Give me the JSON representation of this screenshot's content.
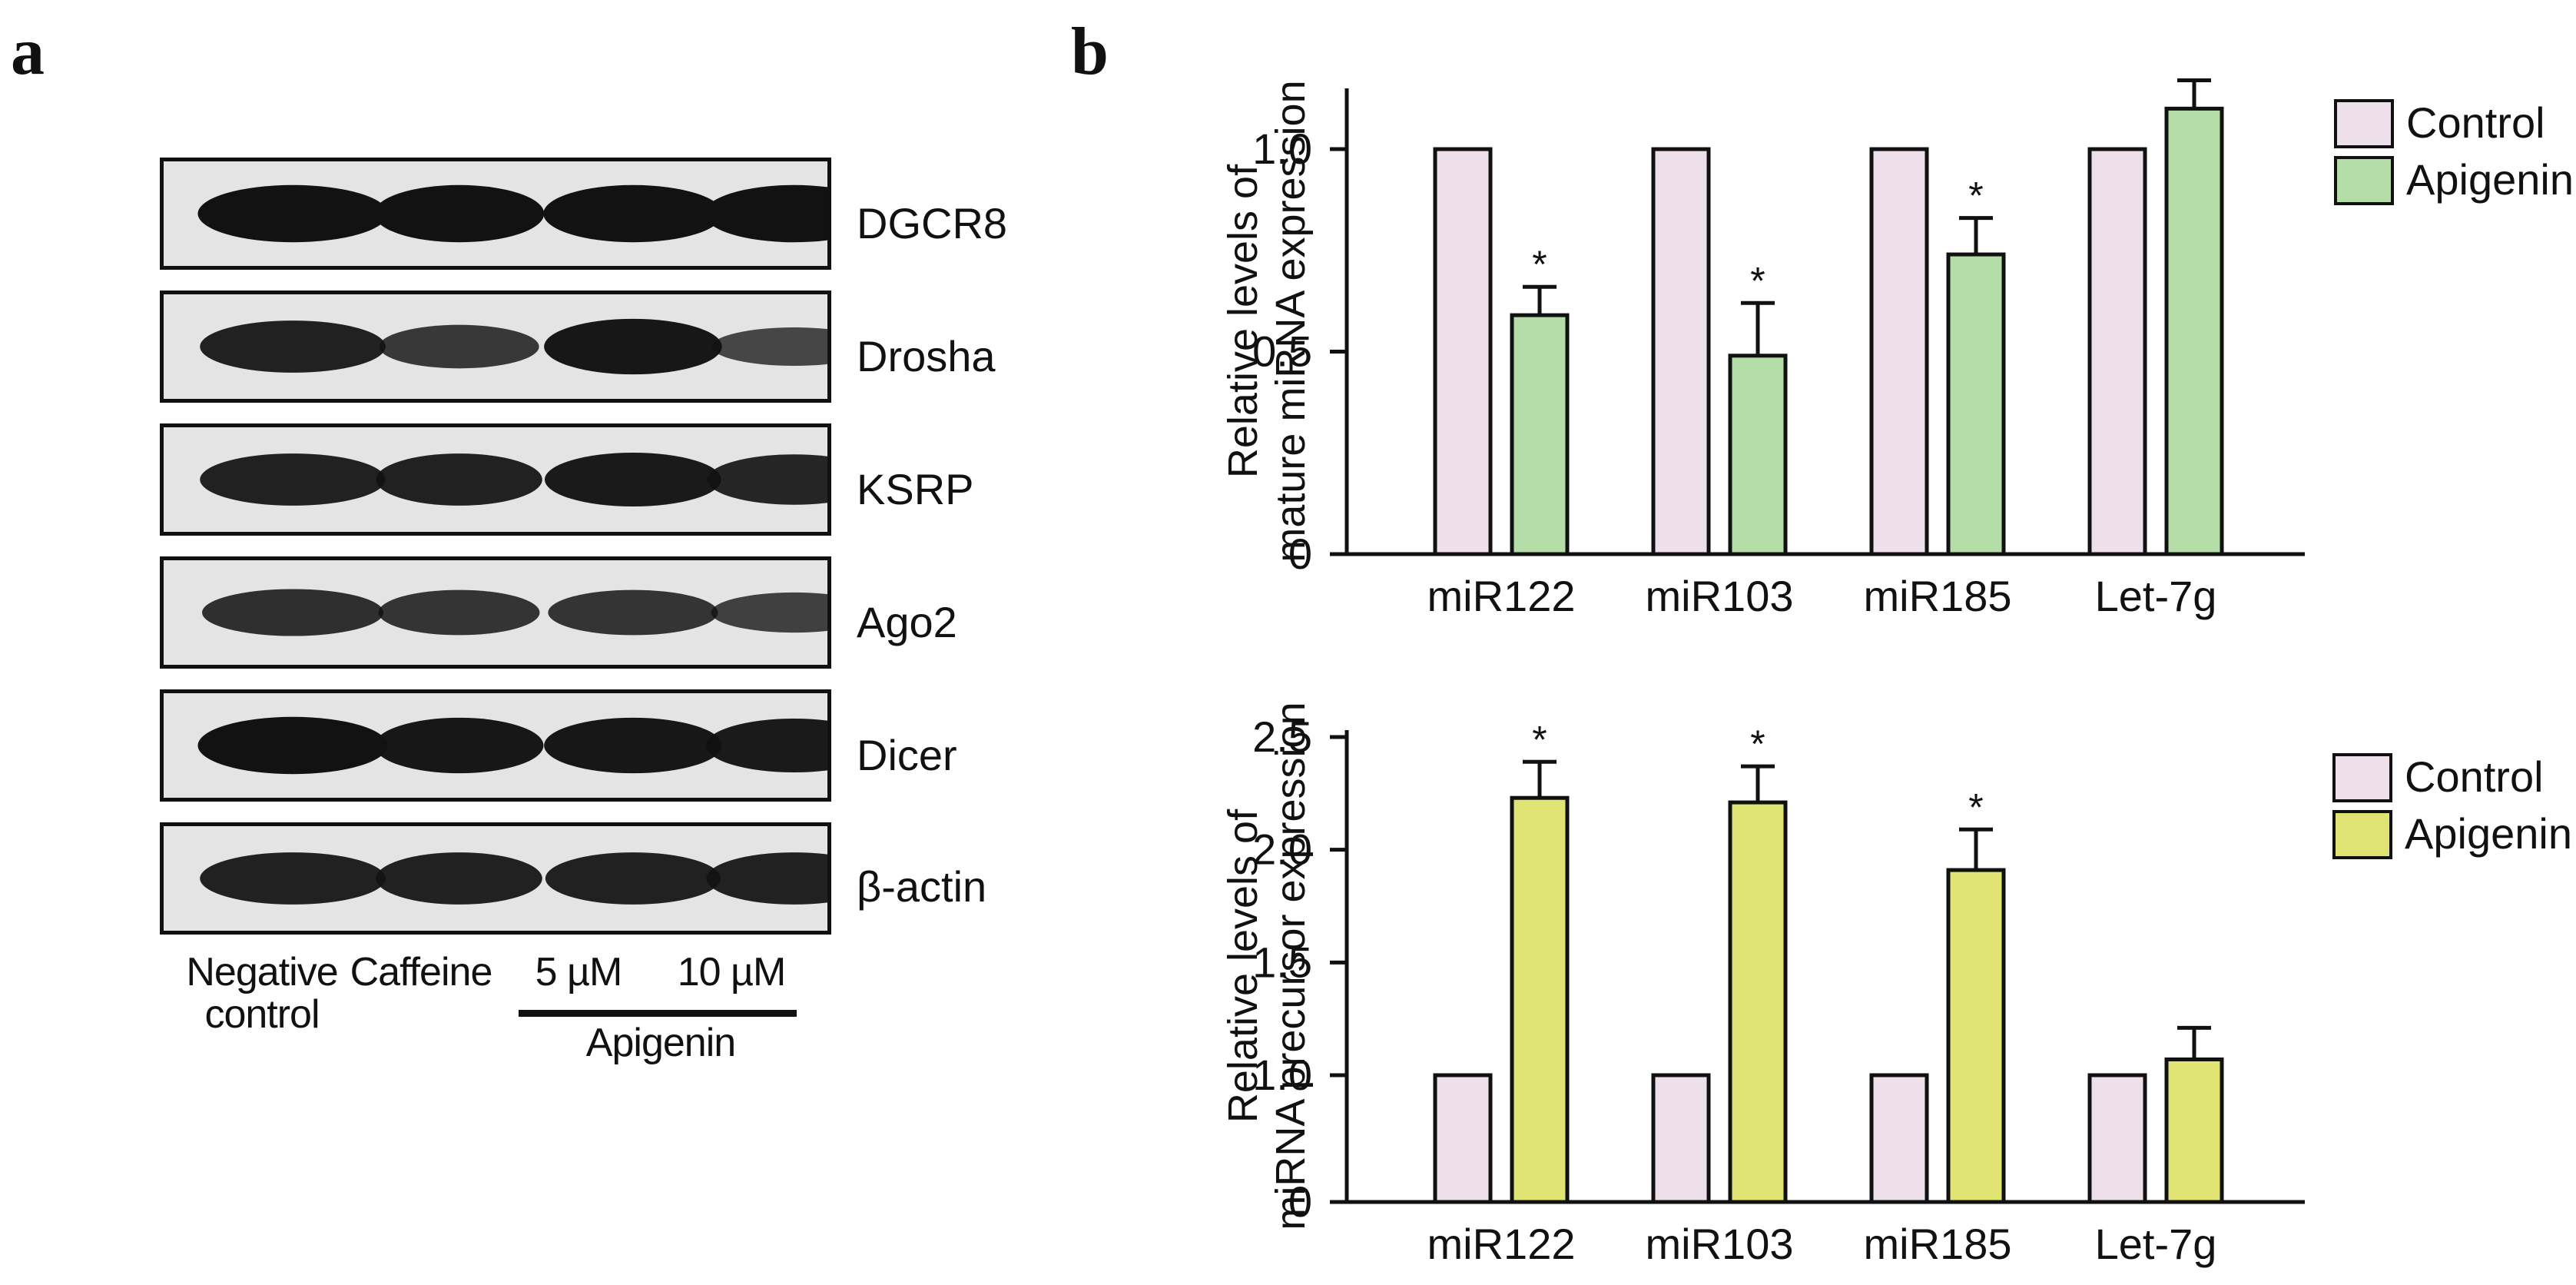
{
  "panel_a": {
    "label": "a",
    "proteins": [
      "DGCR8",
      "Drosha",
      "KSRP",
      "Ago2",
      "Dicer",
      "β-actin"
    ],
    "lanes": {
      "negative_control": "Negative\ncontrol",
      "caffeine": "Caffeine",
      "apigenin_5": "5 µM",
      "apigenin_10": "10 µM",
      "apigenin_group": "Apigenin"
    },
    "band_intensity": [
      [
        1.0,
        1.0,
        1.0,
        1.0
      ],
      [
        0.85,
        0.6,
        0.95,
        0.45
      ],
      [
        0.85,
        0.85,
        0.9,
        0.8
      ],
      [
        0.7,
        0.65,
        0.65,
        0.5
      ],
      [
        1.0,
        0.95,
        0.95,
        0.9
      ],
      [
        0.85,
        0.85,
        0.85,
        0.85
      ]
    ]
  },
  "panel_b": {
    "label": "b"
  },
  "colors": {
    "control": "#eee0ea",
    "apigenin_mature": "#b5dda7",
    "apigenin_precursor": "#dfe473",
    "line": "#111111",
    "blot_bg": "#e4e4e4",
    "band": "#121212"
  },
  "chart_data": [
    {
      "type": "bar",
      "title": "",
      "ylabel": "Relative levels of\nmature miRNA expression",
      "xlabel": "",
      "categories": [
        "miR122",
        "miR103",
        "miR185",
        "Let-7g"
      ],
      "series": [
        {
          "name": "Control",
          "values": [
            1.0,
            1.0,
            1.0,
            1.0
          ]
        },
        {
          "name": "Apigenin",
          "values": [
            0.59,
            0.49,
            0.74,
            1.1
          ],
          "errors": [
            0.07,
            0.13,
            0.09,
            0.07
          ]
        }
      ],
      "significance": [
        "*",
        "*",
        "*",
        ""
      ],
      "yticks": [
        0,
        0.5,
        1.0
      ],
      "ytick_labels": [
        "0",
        "0.5",
        "1.0"
      ],
      "ylim": [
        0,
        1.15
      ],
      "legend": "top-right"
    },
    {
      "type": "bar",
      "title": "",
      "ylabel": "Relative levels of\nmiRNA precursor expression",
      "xlabel": "",
      "categories": [
        "miR122",
        "miR103",
        "miR185",
        "Let-7g"
      ],
      "series": [
        {
          "name": "Control",
          "values": [
            1.0,
            1.0,
            1.0,
            1.0
          ]
        },
        {
          "name": "Apigenin",
          "values": [
            2.23,
            2.21,
            1.91,
            1.07
          ],
          "errors": [
            0.16,
            0.16,
            0.18,
            0.14
          ]
        }
      ],
      "significance": [
        "*",
        "*",
        "*",
        ""
      ],
      "yticks": [
        0,
        1.0,
        1.5,
        2.0,
        2.5
      ],
      "ytick_labels": [
        "0",
        "1.0",
        "1.5",
        "2.0",
        "2.5"
      ],
      "ylim": [
        0,
        2.5
      ],
      "y_axis_break": true,
      "legend": "top-right"
    }
  ]
}
